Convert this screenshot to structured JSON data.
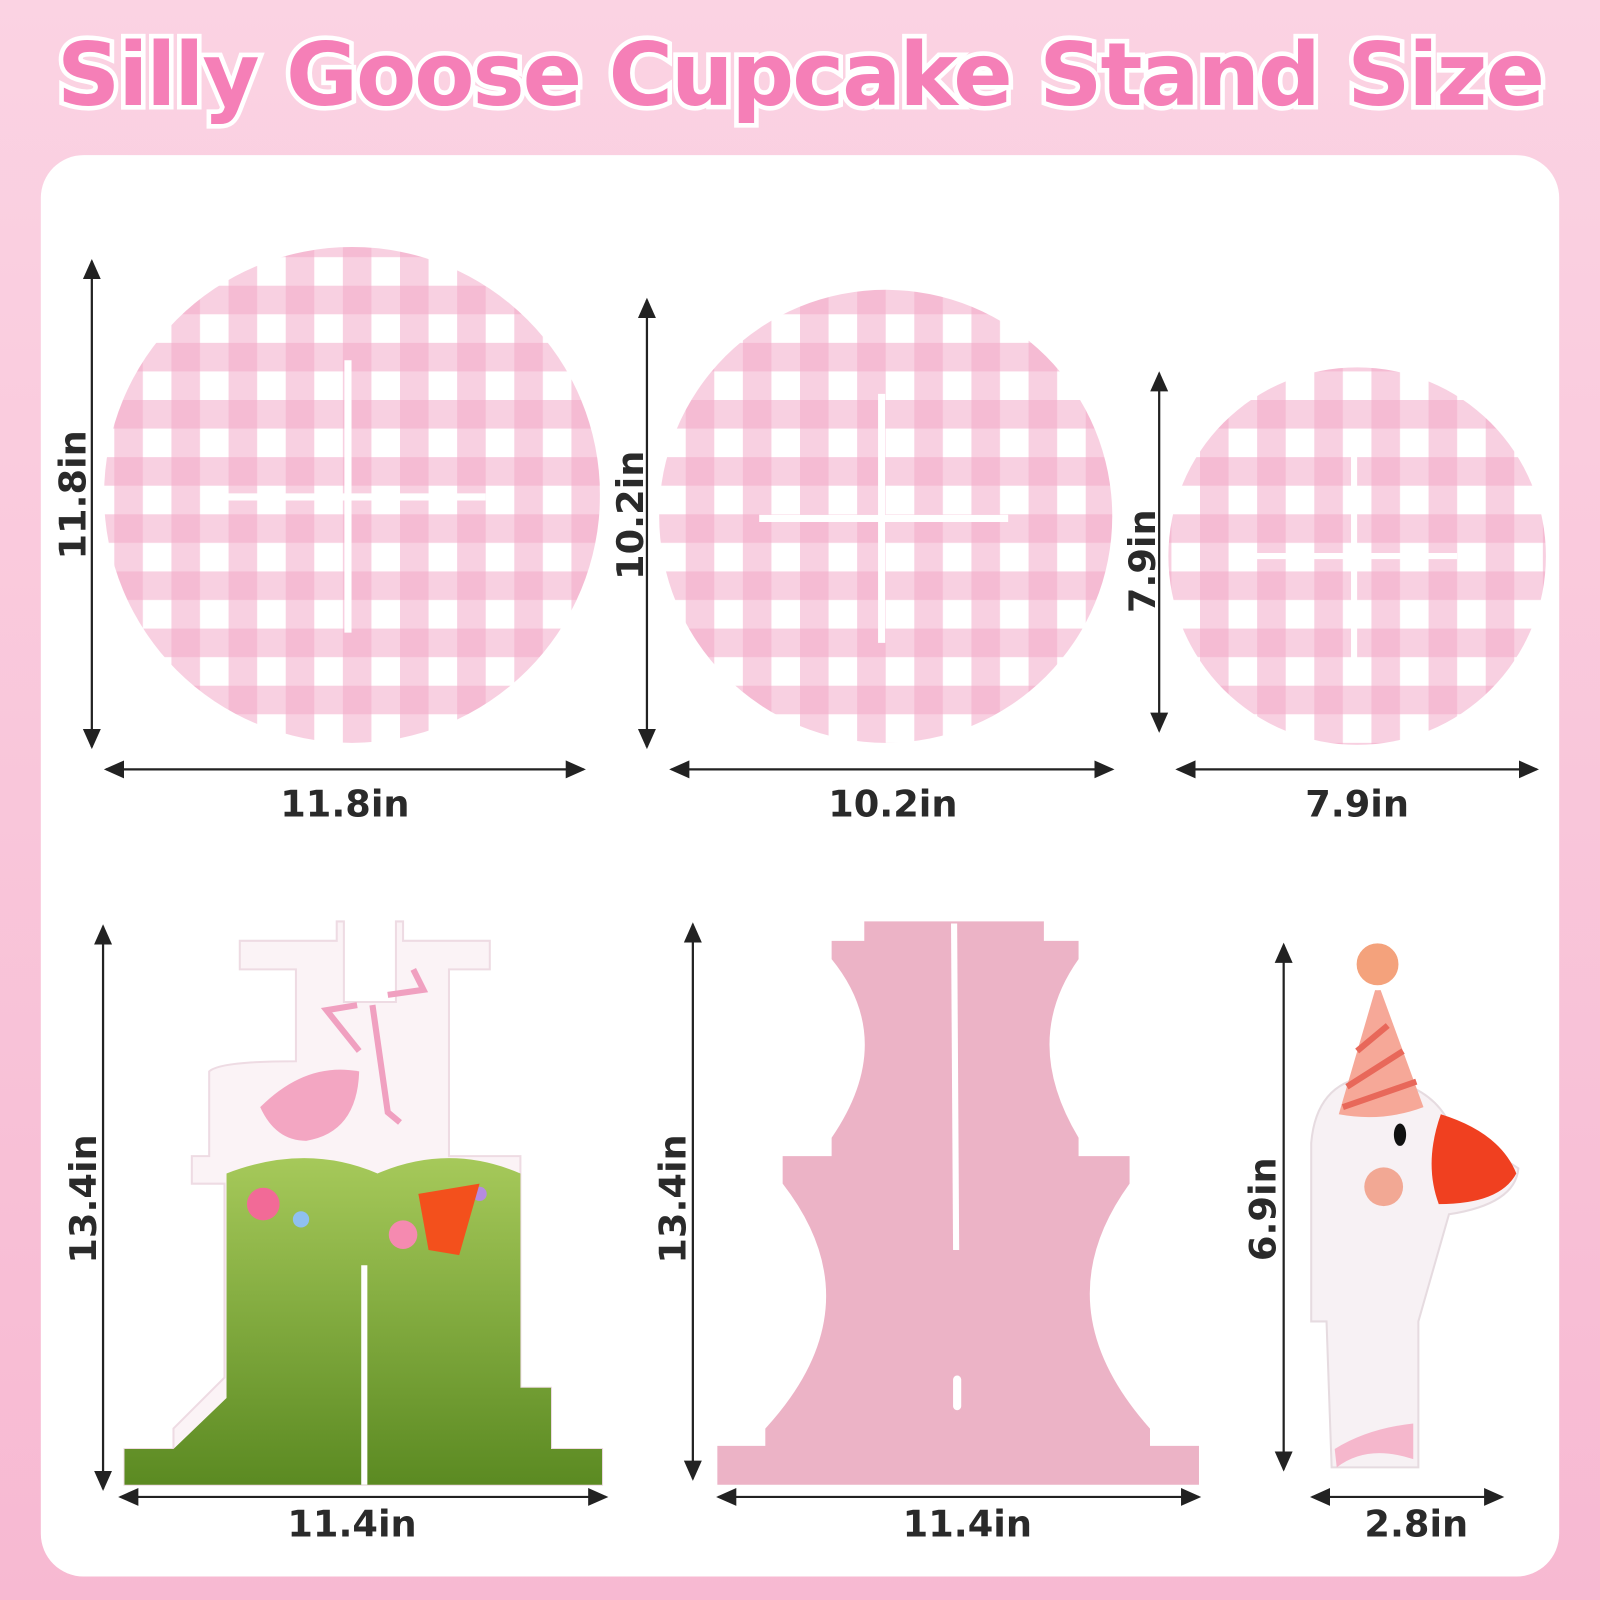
{
  "title": "Silly Goose Cupcake Stand Size",
  "colors": {
    "title": "#f57fb7",
    "gingham": "#f2a9c8",
    "stand_pink": "#ecb3c6",
    "grass": "#6f9a2e",
    "beak": "#f04020"
  },
  "plates": [
    {
      "name": "large-plate",
      "height_label": "11.8in",
      "width_label": "11.8in"
    },
    {
      "name": "medium-plate",
      "height_label": "10.2in",
      "width_label": "10.2in"
    },
    {
      "name": "small-plate",
      "height_label": "7.9in",
      "width_label": "7.9in"
    }
  ],
  "supports": [
    {
      "name": "grass-goose-support",
      "height_label": "13.4in",
      "width_label": "11.4in"
    },
    {
      "name": "pink-support",
      "height_label": "13.4in",
      "width_label": "11.4in"
    },
    {
      "name": "goose-topper",
      "height_label": "6.9in",
      "width_label": "2.8in"
    }
  ]
}
